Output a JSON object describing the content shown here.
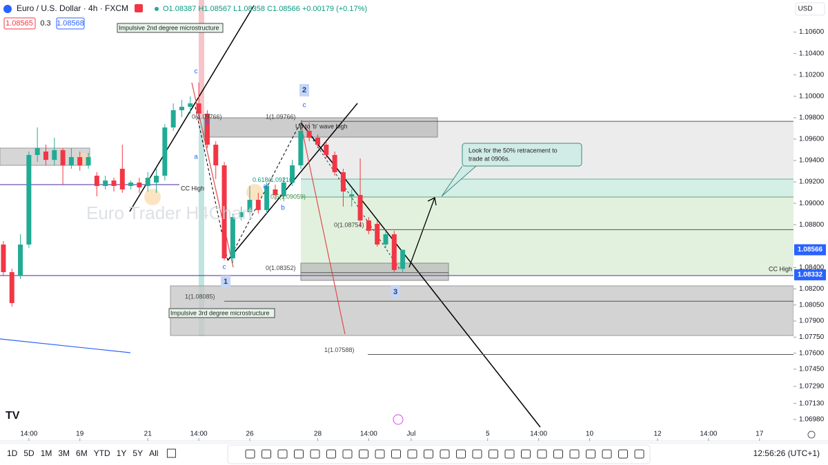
{
  "header": {
    "symbol": "Euro / U.S. Dollar · 4h · FXCM",
    "ohlc": "O1.08387 H1.08567 L1.08358 C1.08566 +0.00179 (+0.17%)",
    "bid": "1.08565",
    "spread": "0.3",
    "ask": "1.08568",
    "currency": "USD"
  },
  "chart_data": {
    "type": "candlestick",
    "candles": [
      [
        1.08615,
        1.08647,
        1.08325,
        1.08357
      ],
      [
        1.08357,
        1.08389,
        1.08035,
        1.08068
      ],
      [
        1.08325,
        1.08711,
        1.08293,
        1.08615
      ],
      [
        1.08615,
        1.09484,
        1.08583,
        1.09452
      ],
      [
        1.09452,
        1.09709,
        1.09387,
        1.09516
      ],
      [
        1.09484,
        1.09548,
        1.09355,
        1.09406
      ],
      [
        1.09406,
        1.09613,
        1.09355,
        1.09497
      ],
      [
        1.09497,
        1.09516,
        1.09175,
        1.09355
      ],
      [
        1.09355,
        1.09516,
        1.09323,
        1.09432
      ],
      [
        1.09432,
        1.09484,
        1.09304,
        1.09355
      ],
      [
        1.09355,
        1.09471,
        1.09323,
        1.09432
      ],
      [
        1.09258,
        1.09291,
        1.09065,
        1.09162
      ],
      [
        1.09162,
        1.09258,
        1.0913,
        1.09213
      ],
      [
        1.09213,
        1.09239,
        1.0911,
        1.09162
      ],
      [
        1.09323,
        1.09548,
        1.09098,
        1.0913
      ],
      [
        1.09162,
        1.09213,
        1.0913,
        1.09194
      ],
      [
        1.09194,
        1.09239,
        1.09098,
        1.09149
      ],
      [
        1.09162,
        1.09291,
        1.0911,
        1.09239
      ],
      [
        1.09194,
        1.09323,
        1.09098,
        1.09258
      ],
      [
        1.09258,
        1.09741,
        1.09213,
        1.09709
      ],
      [
        1.09709,
        1.09934,
        1.09677,
        1.0987
      ],
      [
        1.0987,
        1.09967,
        1.09806,
        1.09902
      ],
      [
        1.09902,
        1.09999,
        1.09838,
        1.09934
      ],
      [
        1.09934,
        1.10128,
        1.09773,
        1.09838
      ],
      [
        1.09838,
        1.0987,
        1.09516,
        1.09548
      ],
      [
        1.09548,
        1.0958,
        1.09226,
        1.09355
      ],
      [
        1.09355,
        1.09387,
        1.08467,
        1.08486
      ],
      [
        1.08486,
        1.08904,
        1.08441,
        1.08872
      ],
      [
        1.08872,
        1.08969,
        1.0884,
        1.08917
      ],
      [
        1.08917,
        1.09162,
        1.08892,
        1.09033
      ],
      [
        1.09033,
        1.09098,
        1.08904,
        1.08937
      ],
      [
        1.08937,
        1.09194,
        1.08904,
        1.09162
      ],
      [
        1.0913,
        1.09175,
        1.09033,
        1.09078
      ],
      [
        1.09065,
        1.09239,
        1.0902,
        1.09194
      ],
      [
        1.09194,
        1.09406,
        1.09162,
        1.09355
      ],
      [
        1.09355,
        1.09741,
        1.09323,
        1.09677
      ],
      [
        1.09677,
        1.09754,
        1.0958,
        1.09613
      ],
      [
        1.09613,
        1.09645,
        1.09516,
        1.09548
      ],
      [
        1.09548,
        1.0958,
        1.09419,
        1.09452
      ],
      [
        1.09452,
        1.09484,
        1.09258,
        1.09291
      ],
      [
        1.09291,
        1.09323,
        1.08969,
        1.0911
      ],
      [
        1.09065,
        1.0913,
        1.08969,
        1.09085
      ],
      [
        1.09078,
        1.09419,
        1.08776,
        1.0884
      ],
      [
        1.0884,
        1.08872,
        1.08711,
        1.08743
      ],
      [
        1.08808,
        1.0884,
        1.08595,
        1.08615
      ],
      [
        1.08615,
        1.08743,
        1.08583,
        1.08711
      ],
      [
        1.08711,
        1.08743,
        1.08357,
        1.08377
      ],
      [
        1.08387,
        1.08567,
        1.08358,
        1.08566
      ]
    ],
    "up_color": "#22ab94",
    "down_color": "#f23645",
    "ylim": [
      1.0678,
      1.109
    ],
    "yticks": [
      {
        "value": 1.106,
        "label": "1.10600"
      },
      {
        "value": 1.104,
        "label": "1.10400"
      },
      {
        "value": 1.102,
        "label": "1.10200"
      },
      {
        "value": 1.1,
        "label": "1.10000"
      },
      {
        "value": 1.098,
        "label": "1.09800"
      },
      {
        "value": 1.096,
        "label": "1.09600"
      },
      {
        "value": 1.094,
        "label": "1.09400"
      },
      {
        "value": 1.092,
        "label": "1.09200"
      },
      {
        "value": 1.09,
        "label": "1.09000"
      },
      {
        "value": 1.088,
        "label": "1.08800"
      },
      {
        "value": 1.084,
        "label": "1.08400"
      },
      {
        "value": 1.082,
        "label": "1.08200"
      },
      {
        "value": 1.0805,
        "label": "1.08050"
      },
      {
        "value": 1.079,
        "label": "1.07900"
      },
      {
        "value": 1.0775,
        "label": "1.07750"
      },
      {
        "value": 1.076,
        "label": "1.07600"
      },
      {
        "value": 1.0745,
        "label": "1.07450"
      },
      {
        "value": 1.0729,
        "label": "1.07290"
      },
      {
        "value": 1.0713,
        "label": "1.07130"
      },
      {
        "value": 1.0698,
        "label": "1.06980"
      }
    ],
    "xlim": [
      -0.4,
      93
    ],
    "xticks": [
      {
        "value": 3,
        "label": "14:00"
      },
      {
        "value": 9,
        "label": "19"
      },
      {
        "value": 17,
        "label": "21"
      },
      {
        "value": 23,
        "label": "14:00"
      },
      {
        "value": 29,
        "label": "26"
      },
      {
        "value": 37,
        "label": "28"
      },
      {
        "value": 43,
        "label": "14:00"
      },
      {
        "value": 48,
        "label": "Jul"
      },
      {
        "value": 57,
        "label": "5"
      },
      {
        "value": 63,
        "label": "14:00"
      },
      {
        "value": 69,
        "label": "10"
      },
      {
        "value": 77,
        "label": "12"
      },
      {
        "value": 83,
        "label": "14:00"
      },
      {
        "value": 89,
        "label": "17"
      }
    ],
    "price_tags": [
      {
        "value": 1.08566,
        "label": "1.08566"
      },
      {
        "value": 1.08332,
        "label": "1.08332"
      }
    ],
    "levels": [
      {
        "value": 1.09766,
        "label": "1(1.09766)"
      },
      {
        "value": 1.08352,
        "label": "0(1.08352)"
      },
      {
        "value": 1.08085,
        "label": "1(1.08085)"
      },
      {
        "value": 1.07588,
        "label": "1(1.07588)"
      },
      {
        "value": 1.08754,
        "label": "0(1.08754)"
      },
      {
        "value": 1.09216,
        "label": "0.618(1.09216)"
      },
      {
        "value": 1.09059,
        "label": "0.5(1.09059)"
      },
      {
        "value": 1.09766,
        "label": "0(1.09766)"
      }
    ],
    "watermark": "Euro Trader H4Chart",
    "notes": [
      "Impulsive 2nd degree microstructure",
      "Impulsive 3rd degree microstructure",
      "CC High",
      "CC High",
      "Up to 'b' wave high",
      "Look for the 50% retracement to",
      "trade at 0906s."
    ],
    "waves": [
      "c",
      "b",
      "a",
      "c",
      "a",
      "b",
      "c"
    ],
    "wave_counts": [
      "1",
      "2",
      "3"
    ]
  },
  "toolbar": {
    "ranges": [
      "1D",
      "5D",
      "1M",
      "3M",
      "6M",
      "YTD",
      "1Y",
      "5Y",
      "All"
    ],
    "clock": "12:56:26 (UTC+1)"
  }
}
